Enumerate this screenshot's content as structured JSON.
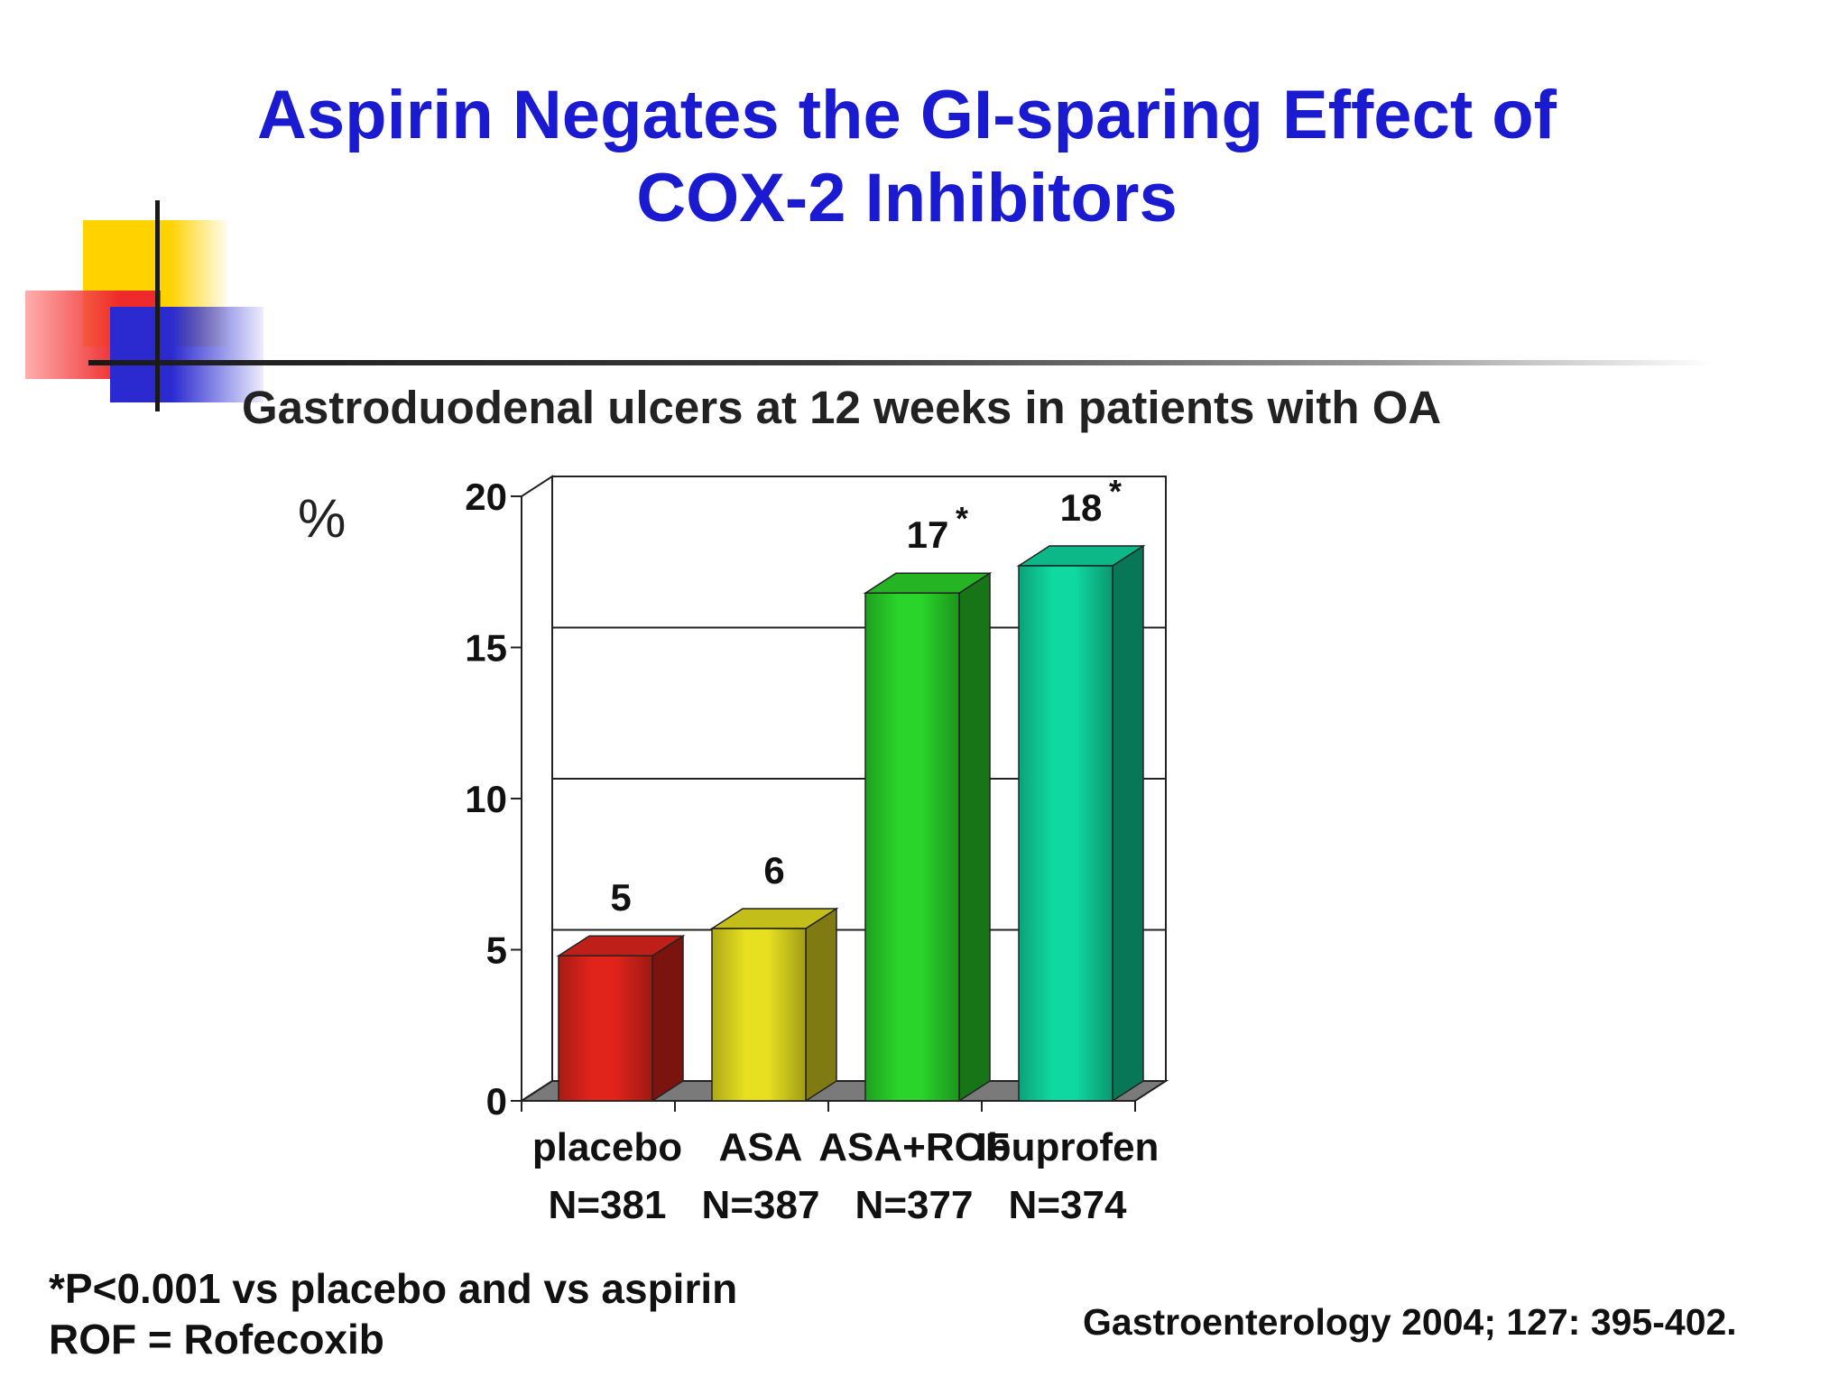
{
  "slide": {
    "title_line1": "Aspirin Negates the GI-sparing Effect of",
    "title_line2": "COX-2 Inhibitors",
    "subtitle": "Gastroduodenal ulcers at 12 weeks in patients with OA",
    "footnote_line1": "*P<0.001 vs placebo and vs aspirin",
    "footnote_line2": "ROF = Rofecoxib",
    "citation": "Gastroenterology 2004; 127: 395-402."
  },
  "chart_data": {
    "type": "bar",
    "title": "",
    "ylabel": "%",
    "xlabel": "",
    "ylim": [
      0,
      20
    ],
    "yticks": [
      0,
      5,
      10,
      15,
      20
    ],
    "grid": true,
    "categories": [
      "placebo",
      "ASA",
      "ASA+ROF",
      "Ibuprofen"
    ],
    "sample_sizes": [
      "N=381",
      "N=387",
      "N=377",
      "N=374"
    ],
    "values": [
      4.8,
      5.7,
      16.8,
      17.7
    ],
    "data_labels": [
      "5",
      "6",
      "17",
      "18"
    ],
    "significance": [
      "",
      "",
      "*",
      "*"
    ],
    "colors": [
      "#e0241c",
      "#e6e020",
      "#2ad42a",
      "#0fd8a0"
    ]
  }
}
